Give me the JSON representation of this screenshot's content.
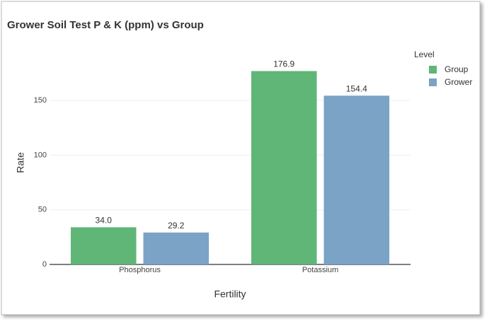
{
  "chart_data": {
    "type": "bar",
    "title": "Grower Soil Test P & K (ppm) vs Group",
    "x_label": "Fertility",
    "y_label": "Rate",
    "categories": [
      "Phosphorus",
      "Potassium"
    ],
    "series": [
      {
        "name": "Group",
        "color": "#5fb677",
        "values": [
          34.0,
          176.9
        ],
        "value_labels": [
          "34.0",
          "176.9"
        ]
      },
      {
        "name": "Grower",
        "color": "#7aa3c6",
        "values": [
          29.2,
          154.4
        ],
        "value_labels": [
          "29.2",
          "154.4"
        ]
      }
    ],
    "legend_title": "Level",
    "legend": "right",
    "ylim": [
      0,
      185
    ],
    "yticks": [
      0,
      50,
      100,
      150
    ],
    "grid": true
  }
}
